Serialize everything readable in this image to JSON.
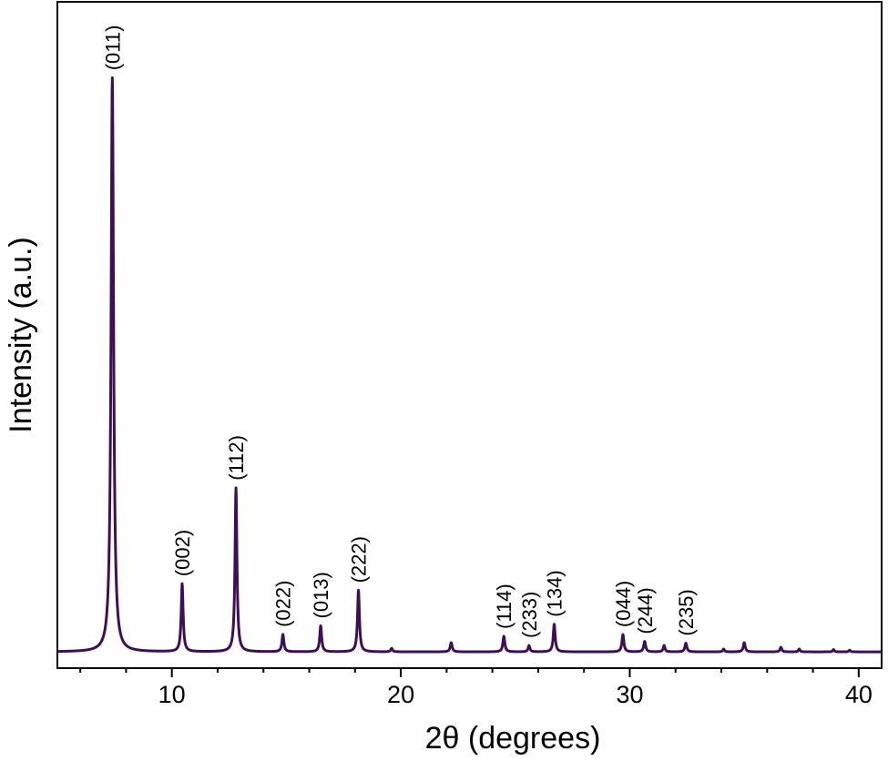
{
  "chart_data": {
    "type": "line",
    "title": "",
    "xlabel": "2θ (degrees)",
    "ylabel": "Intensity (a.u.)",
    "xlim": [
      5,
      41
    ],
    "ylim": [
      0,
      1.0
    ],
    "x_ticks": [
      10,
      20,
      30,
      40
    ],
    "x_tick_labels": [
      "10",
      "20",
      "30",
      "40"
    ],
    "y_ticks_shown": false,
    "grid": false,
    "series_color": "#3e0f55",
    "baseline": 0.003,
    "peaks": [
      {
        "x": 7.4,
        "height": 0.998,
        "width": 0.13,
        "label": "(011)"
      },
      {
        "x": 10.45,
        "height": 0.118,
        "width": 0.1,
        "label": "(002)"
      },
      {
        "x": 12.8,
        "height": 0.285,
        "width": 0.1,
        "label": "(112)"
      },
      {
        "x": 14.85,
        "height": 0.03,
        "width": 0.1,
        "label": "(022)"
      },
      {
        "x": 16.5,
        "height": 0.045,
        "width": 0.1,
        "label": "(013)"
      },
      {
        "x": 18.15,
        "height": 0.107,
        "width": 0.1,
        "label": "(222)"
      },
      {
        "x": 19.6,
        "height": 0.006,
        "width": 0.09,
        "label": ""
      },
      {
        "x": 22.2,
        "height": 0.016,
        "width": 0.1,
        "label": ""
      },
      {
        "x": 24.5,
        "height": 0.027,
        "width": 0.1,
        "label": "(114)"
      },
      {
        "x": 25.6,
        "height": 0.011,
        "width": 0.09,
        "label": "(233)"
      },
      {
        "x": 26.7,
        "height": 0.048,
        "width": 0.1,
        "label": "(134)"
      },
      {
        "x": 29.7,
        "height": 0.03,
        "width": 0.1,
        "label": "(044)"
      },
      {
        "x": 30.65,
        "height": 0.018,
        "width": 0.1,
        "label": "(244)"
      },
      {
        "x": 31.5,
        "height": 0.011,
        "width": 0.09,
        "label": ""
      },
      {
        "x": 32.45,
        "height": 0.015,
        "width": 0.1,
        "label": "(235)"
      },
      {
        "x": 34.1,
        "height": 0.005,
        "width": 0.08,
        "label": ""
      },
      {
        "x": 35.0,
        "height": 0.016,
        "width": 0.1,
        "label": ""
      },
      {
        "x": 36.6,
        "height": 0.008,
        "width": 0.09,
        "label": ""
      },
      {
        "x": 37.4,
        "height": 0.005,
        "width": 0.08,
        "label": ""
      },
      {
        "x": 38.9,
        "height": 0.004,
        "width": 0.08,
        "label": ""
      },
      {
        "x": 39.6,
        "height": 0.003,
        "width": 0.08,
        "label": ""
      }
    ]
  }
}
